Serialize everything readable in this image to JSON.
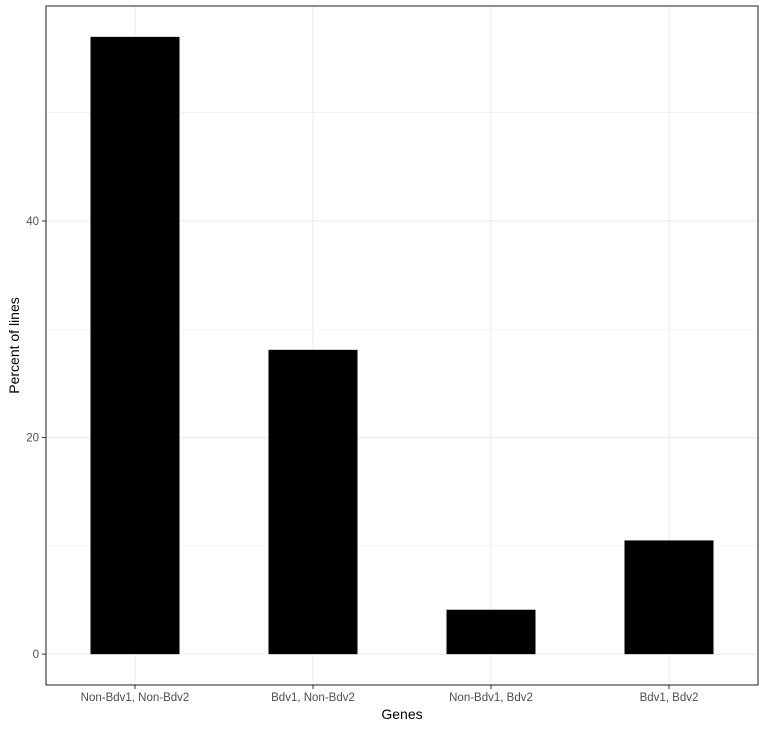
{
  "chart_data": {
    "type": "bar",
    "categories": [
      "Non-Bdv1, Non-Bdv2",
      "Bdv1, Non-Bdv2",
      "Non-Bdv1, Bdv2",
      "Bdv1, Bdv2"
    ],
    "values": [
      57.0,
      28.1,
      4.1,
      10.5
    ],
    "xlabel": "Genes",
    "ylabel": "Percent of lines",
    "ylim": [
      -2.85,
      59.85
    ],
    "yticks": [
      0,
      20,
      40
    ],
    "grid": true,
    "legend": "none",
    "bar_color": "#000000",
    "grid_color": "#ebebeb",
    "panel_border_color": "#333333"
  }
}
